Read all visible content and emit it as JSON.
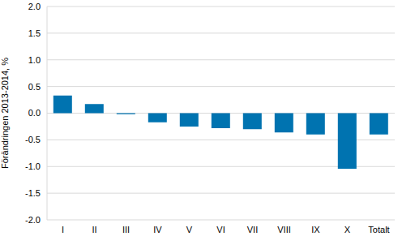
{
  "chart_data": {
    "type": "bar",
    "y_label": "Förändringen 2013-2014, %",
    "categories": [
      "I",
      "II",
      "III",
      "IV",
      "V",
      "VI",
      "VII",
      "VIII",
      "IX",
      "X",
      "Totalt"
    ],
    "values": [
      0.33,
      0.17,
      -0.02,
      -0.17,
      -0.25,
      -0.28,
      -0.3,
      -0.36,
      -0.4,
      -1.04,
      -0.4
    ],
    "color": "#0073b0",
    "ylim": [
      -2,
      2
    ],
    "yticks": [
      {
        "value": -2,
        "label": "-2.0"
      },
      {
        "value": -1.5,
        "label": "-1.5"
      },
      {
        "value": -1,
        "label": "-1.0"
      },
      {
        "value": -0.5,
        "label": "-0.5"
      },
      {
        "value": 0,
        "label": "0.0"
      },
      {
        "value": 0.5,
        "label": "0.5"
      },
      {
        "value": 1,
        "label": "1.0"
      },
      {
        "value": 1.5,
        "label": "1.5"
      },
      {
        "value": 2,
        "label": "2.0"
      }
    ],
    "grid": true
  }
}
